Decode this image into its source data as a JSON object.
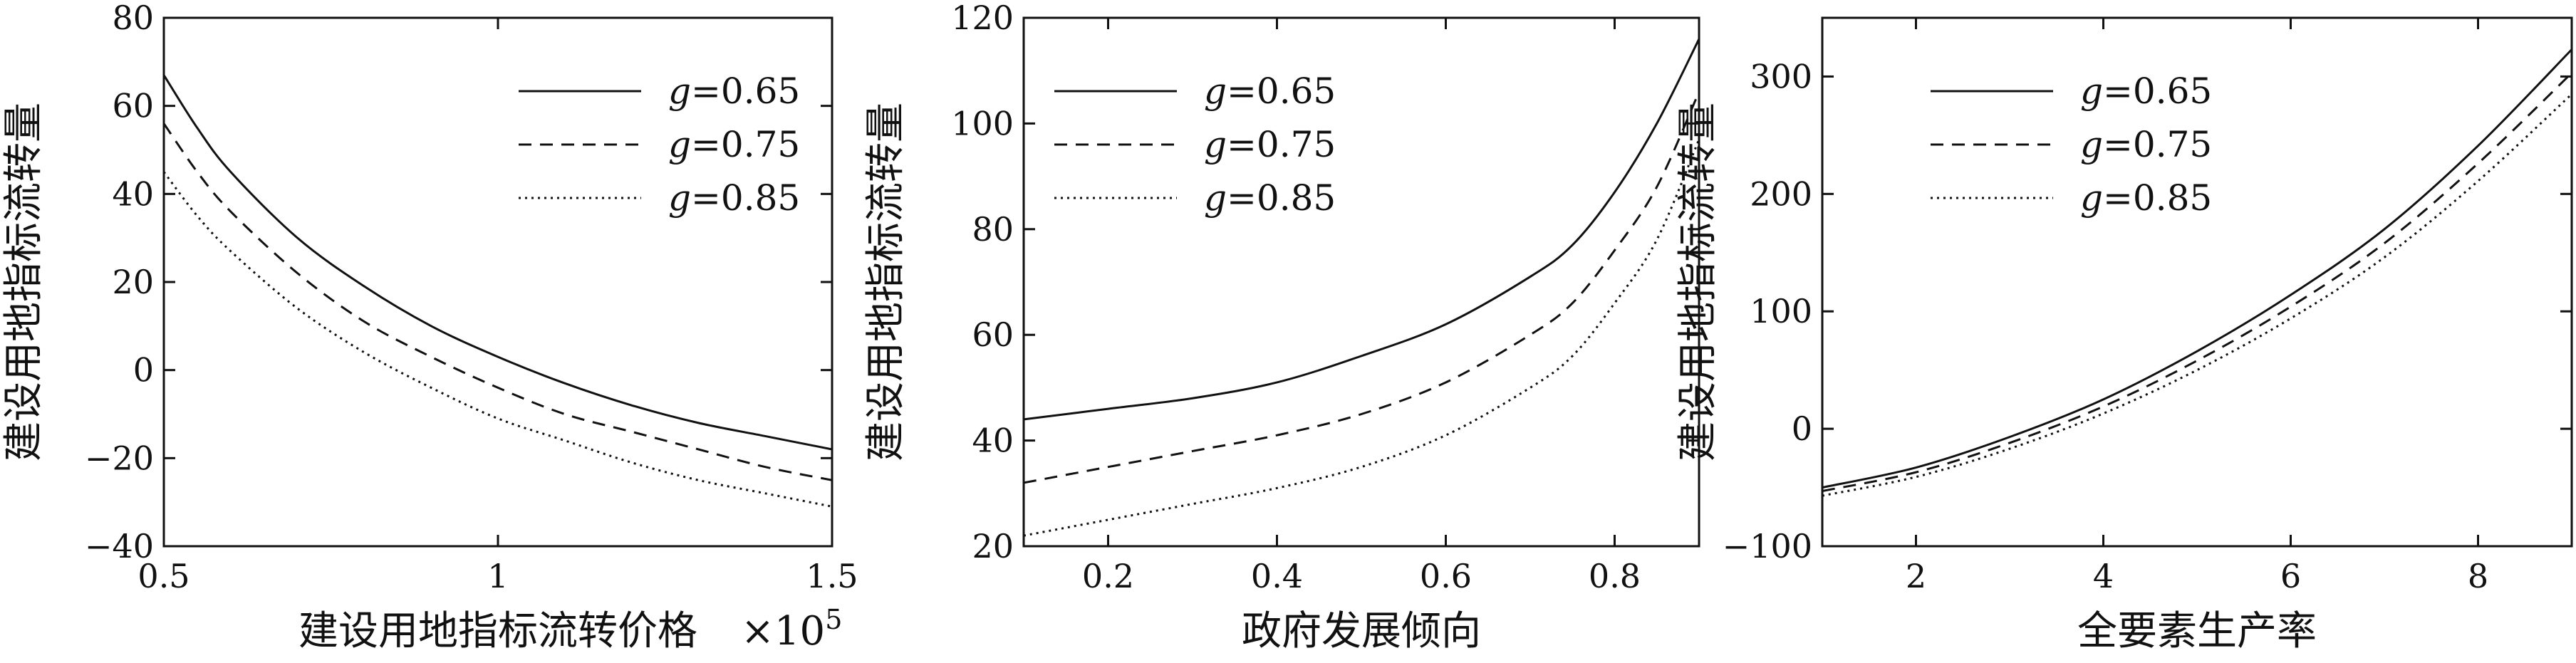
{
  "chart_data": [
    {
      "type": "line",
      "ylabel": "建设用地指标流转量",
      "xlabel": "建设用地指标流转价格",
      "x_multiplier_label": "×10",
      "x_multiplier_exp": "5",
      "xlim": [
        0.5,
        1.5
      ],
      "ylim": [
        -40,
        80
      ],
      "xticks": [
        "0.5",
        "1",
        "1.5"
      ],
      "yticks": [
        "80",
        "60",
        "40",
        "20",
        "0",
        "-20",
        "-40"
      ],
      "legend_position": "top-right",
      "x": [
        0.5,
        0.55,
        0.6,
        0.7,
        0.8,
        0.9,
        1.0,
        1.1,
        1.2,
        1.3,
        1.4,
        1.5
      ],
      "series": [
        {
          "name": "g=0.65",
          "name_var": "g",
          "name_val": "=0.65",
          "style": "solid",
          "values": [
            67,
            55,
            45,
            30,
            19,
            10,
            3,
            -3,
            -8,
            -12,
            -15,
            -18
          ]
        },
        {
          "name": "g=0.75",
          "name_var": "g",
          "name_val": "=0.75",
          "style": "dashed",
          "values": [
            56,
            45,
            36,
            22,
            11,
            3,
            -4,
            -10,
            -14,
            -18,
            -22,
            -25
          ]
        },
        {
          "name": "g=0.85",
          "name_var": "g",
          "name_val": "=0.85",
          "style": "dotted",
          "values": [
            45,
            35,
            27,
            14,
            4,
            -4,
            -11,
            -16,
            -21,
            -25,
            -28,
            -31
          ]
        }
      ]
    },
    {
      "type": "line",
      "ylabel": "建设用地指标流转量",
      "xlabel": "政府发展倾向",
      "xlim": [
        0.1,
        0.9
      ],
      "ylim": [
        20,
        120
      ],
      "xticks": [
        "0.2",
        "0.4",
        "0.6",
        "0.8"
      ],
      "xtick_values": [
        0.2,
        0.4,
        0.6,
        0.8
      ],
      "yticks": [
        "120",
        "100",
        "80",
        "60",
        "40",
        "20"
      ],
      "legend_position": "top-left",
      "x": [
        0.1,
        0.2,
        0.3,
        0.4,
        0.5,
        0.6,
        0.7,
        0.75,
        0.8,
        0.85,
        0.9
      ],
      "series": [
        {
          "name": "g=0.65",
          "name_var": "g",
          "name_val": "=0.65",
          "style": "solid",
          "values": [
            44,
            46,
            48,
            51,
            56,
            62,
            71,
            77,
            87,
            100,
            116
          ]
        },
        {
          "name": "g=0.75",
          "name_var": "g",
          "name_val": "=0.75",
          "style": "dashed",
          "values": [
            32,
            35,
            38,
            41,
            45,
            51,
            60,
            66,
            76,
            88,
            106
          ]
        },
        {
          "name": "g=0.85",
          "name_var": "g",
          "name_val": "=0.85",
          "style": "dotted",
          "values": [
            22,
            25,
            28,
            31,
            35,
            41,
            50,
            56,
            66,
            78,
            97
          ]
        }
      ]
    },
    {
      "type": "line",
      "ylabel": "建设用地指标流转量",
      "xlabel": "全要素生产率",
      "xlim": [
        1,
        9
      ],
      "ylim": [
        -100,
        350
      ],
      "xticks": [
        "2",
        "4",
        "6",
        "8"
      ],
      "xtick_values": [
        2,
        4,
        6,
        8
      ],
      "yticks": [
        "300",
        "200",
        "100",
        "0",
        "-100"
      ],
      "ytick_values": [
        300,
        200,
        100,
        0,
        -100
      ],
      "legend_position": "top-left",
      "x": [
        1,
        2,
        3,
        4,
        5,
        6,
        7,
        8,
        9
      ],
      "series": [
        {
          "name": "g=0.65",
          "name_var": "g",
          "name_val": "=0.65",
          "style": "solid",
          "values": [
            -50,
            -33,
            -7,
            25,
            66,
            114,
            170,
            241,
            323
          ]
        },
        {
          "name": "g=0.75",
          "name_var": "g",
          "name_val": "=0.75",
          "style": "dashed",
          "values": [
            -53,
            -37,
            -12,
            19,
            58,
            104,
            158,
            226,
            303
          ]
        },
        {
          "name": "g=0.85",
          "name_var": "g",
          "name_val": "=0.85",
          "style": "dotted",
          "values": [
            -57,
            -41,
            -17,
            13,
            50,
            94,
            146,
            211,
            285
          ]
        }
      ]
    }
  ]
}
